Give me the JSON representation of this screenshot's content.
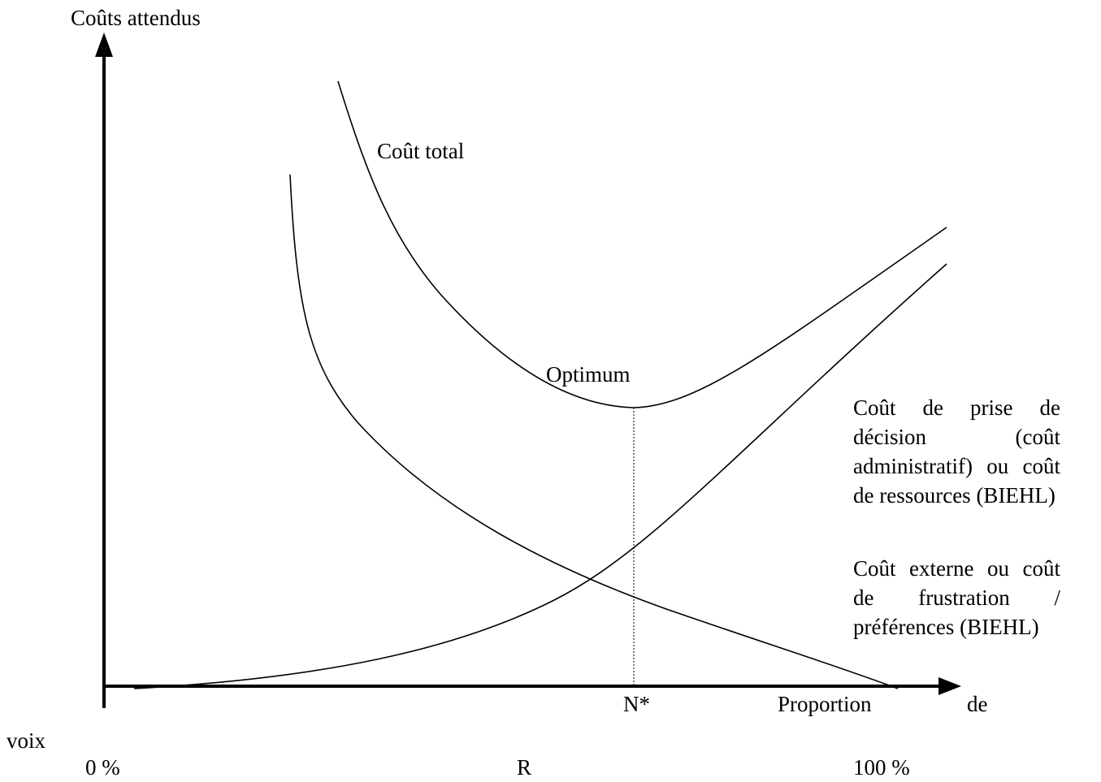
{
  "y_axis_label": "Coûts attendus",
  "curve_labels": {
    "total": "Coût total",
    "optimum": "Optimum"
  },
  "decision_cost_label": [
    "Coût de prise de",
    "décision (coût",
    "administratif) ou coût",
    "de ressources (BIEHL)"
  ],
  "external_cost_label": [
    "Coût externe ou coût",
    "de frustration /",
    "préférences (BIEHL)"
  ],
  "x_axis": {
    "optimum_point": "N*",
    "label_parts": [
      "Proportion",
      "de",
      "voix"
    ],
    "start": "0 %",
    "middle": "R",
    "end": "100 %"
  }
}
